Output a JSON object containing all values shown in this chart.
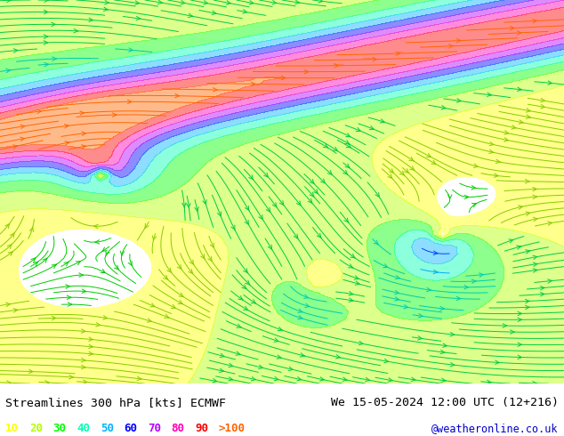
{
  "title_left": "Streamlines 300 hPa [kts] ECMWF",
  "title_right": "We 15-05-2024 12:00 UTC (12+216)",
  "subtitle": "@weatheronline.co.uk",
  "legend_values": [
    "10",
    "20",
    "30",
    "40",
    "50",
    "60",
    "70",
    "80",
    "90",
    ">100"
  ],
  "legend_colors": [
    "#ffff00",
    "#b4ff00",
    "#00ff00",
    "#00ffb4",
    "#00b4ff",
    "#0000ff",
    "#b400ff",
    "#ff00b4",
    "#ff0000",
    "#ff6600"
  ],
  "background_color": "#ffffff",
  "map_background": "#f0f0f0",
  "fig_width": 6.34,
  "fig_height": 4.9,
  "dpi": 100,
  "speed_levels": [
    0,
    10,
    20,
    30,
    40,
    50,
    60,
    70,
    80,
    90,
    100,
    150
  ],
  "colormap_colors": [
    "#ffffff",
    "#ffff00",
    "#b4ff00",
    "#00ff00",
    "#00ffb4",
    "#00b4ff",
    "#0000ff",
    "#b400ff",
    "#ff00b4",
    "#ff0000",
    "#ff6600"
  ]
}
